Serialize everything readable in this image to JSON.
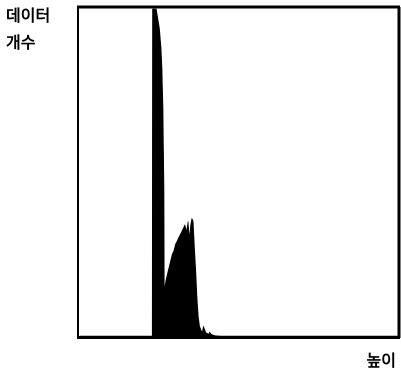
{
  "chart_data": {
    "type": "area",
    "title": "",
    "ylabel_lines": [
      "데이터",
      "개수"
    ],
    "xlabel": "높이",
    "grid": false,
    "legend": "none",
    "xlim": [
      0,
      100
    ],
    "ylim": [
      0,
      100
    ],
    "series": [
      {
        "x": [
          0,
          22.7,
          22.8,
          23.0,
          23.3,
          23.5,
          24.0,
          24.5,
          25.0,
          25.5,
          25.8,
          26.1,
          26.3,
          26.4,
          26.5,
          27.0,
          27.5,
          28.0,
          28.5,
          29.0,
          29.5,
          30.0,
          30.5,
          31.0,
          31.5,
          32.0,
          32.5,
          33.0,
          33.5,
          34.0,
          34.4,
          34.8,
          35.2,
          35.6,
          36.0,
          36.4,
          36.8,
          37.2,
          37.6,
          38.0,
          38.4,
          38.8,
          39.2,
          39.6,
          40.0,
          40.4,
          40.8,
          41.2,
          41.6,
          42.0,
          42.6,
          43.2,
          44.0,
          45.0,
          100
        ],
        "y": [
          0,
          0,
          100,
          100,
          100,
          100,
          100,
          97,
          94,
          88,
          82,
          70,
          55,
          45,
          14,
          17,
          19,
          21,
          23,
          25,
          26,
          28,
          29,
          30,
          31,
          32,
          33,
          34,
          32,
          35,
          30,
          34,
          36,
          35,
          27,
          20,
          12,
          6,
          3,
          2,
          1,
          3,
          2,
          1,
          0.8,
          0.5,
          1.2,
          0.6,
          0.4,
          0.2,
          0.1,
          0.05,
          0,
          0,
          0
        ]
      }
    ]
  }
}
